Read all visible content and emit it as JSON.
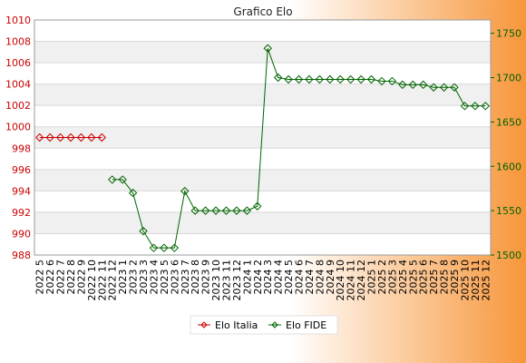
{
  "chart_data": {
    "type": "line",
    "title": "Grafico Elo",
    "categories": [
      "2022 5",
      "2022 6",
      "2022 7",
      "2022 8",
      "2022 9",
      "2022 10",
      "2022 11",
      "2022 12",
      "2023 1",
      "2023 2",
      "2023 3",
      "2023 4",
      "2023 5",
      "2023 6",
      "2023 7",
      "2023 8",
      "2023 9",
      "2023 10",
      "2023 11",
      "2023 12",
      "2024 1",
      "2024 2",
      "2024 3",
      "2024 4",
      "2024 5",
      "2024 6",
      "2024 7",
      "2024 8",
      "2024 9",
      "2024 10",
      "2024 11",
      "2024 12",
      "2025 1",
      "2025 2",
      "2025 3",
      "2025 4",
      "2025 5",
      "2025 6",
      "2025 7",
      "2025 8",
      "2025 9",
      "2025 10",
      "2025 11",
      "2025 12"
    ],
    "y_left": {
      "ylim": [
        988,
        1010
      ],
      "ticks": [
        988,
        990,
        992,
        994,
        996,
        998,
        1000,
        1002,
        1004,
        1006,
        1008,
        1010
      ],
      "color": "#cc0000"
    },
    "y_right": {
      "ylim": [
        1500,
        1765
      ],
      "ticks": [
        1500,
        1550,
        1600,
        1650,
        1700,
        1750
      ],
      "color": "#006400"
    },
    "series": [
      {
        "name": "Elo Italia",
        "axis": "left",
        "color": "#cc0000",
        "values": [
          999,
          999,
          999,
          999,
          999,
          999,
          999,
          null,
          null,
          null,
          null,
          null,
          null,
          null,
          null,
          null,
          null,
          null,
          null,
          null,
          null,
          null,
          null,
          null,
          null,
          null,
          null,
          null,
          null,
          null,
          null,
          null,
          null,
          null,
          null,
          null,
          null,
          null,
          null,
          null,
          null,
          null,
          null,
          null
        ]
      },
      {
        "name": "Elo FIDE",
        "axis": "right",
        "color": "#006400",
        "values": [
          null,
          null,
          null,
          null,
          null,
          null,
          null,
          1585,
          1585,
          1570,
          1527,
          1508,
          1508,
          1508,
          1572,
          1550,
          1550,
          1550,
          1550,
          1550,
          1550,
          1555,
          1733,
          1700,
          1698,
          1698,
          1698,
          1698,
          1698,
          1698,
          1698,
          1698,
          1698,
          1696,
          1696,
          1692,
          1692,
          1692,
          1689,
          1689,
          1689,
          1668,
          1668,
          1668
        ]
      }
    ],
    "grid": true,
    "legend_position": "bottom"
  }
}
